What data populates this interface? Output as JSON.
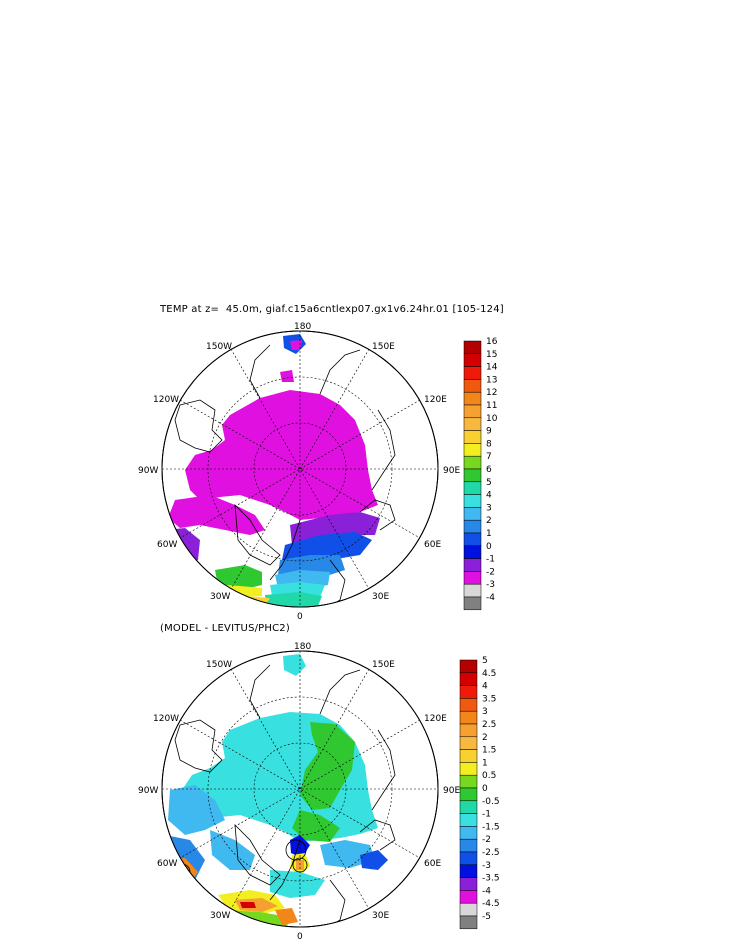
{
  "top_panel": {
    "title": "TEMP at z=  45.0m, giaf.c15a6cntlexp07.gx1v6.24hr.01 [105-124]",
    "labels": {
      "n180": "180",
      "w150": "150W",
      "e150": "150E",
      "w120": "120W",
      "e120": "120E",
      "w90": "90W",
      "e90": "90E",
      "w60": "60W",
      "e60": "60E",
      "w30": "30W",
      "e30": "30E",
      "s0": "0"
    },
    "colorbar": {
      "levels": [
        "16",
        "15",
        "14",
        "13",
        "12",
        "11",
        "10",
        "9",
        "8",
        "7",
        "6",
        "5",
        "4",
        "3",
        "2",
        "1",
        "0",
        "-1",
        "-2",
        "-3",
        "-4"
      ],
      "colors": [
        "#b30000",
        "#d40000",
        "#ef1a0a",
        "#f05a10",
        "#f2861a",
        "#f5a030",
        "#f7b840",
        "#f8d030",
        "#f2ee20",
        "#78d820",
        "#30c830",
        "#20d8a8",
        "#38e0e0",
        "#40b8f0",
        "#2888e8",
        "#1050e8",
        "#0010e0",
        "#8a20d8",
        "#e010e0",
        "#d8d8d8",
        "#808080"
      ]
    }
  },
  "bottom_panel": {
    "title": "(MODEL - LEVITUS/PHC2)",
    "labels": {
      "n180": "180",
      "w150": "150W",
      "e150": "150E",
      "w120": "120W",
      "e120": "120E",
      "w90": "90W",
      "e90": "90E",
      "w60": "60W",
      "e60": "60E",
      "w30": "30W",
      "e30": "30E",
      "s0": "0"
    },
    "colorbar": {
      "levels": [
        "5",
        "4.5",
        "4",
        "3.5",
        "3",
        "2.5",
        "2",
        "1.5",
        "1",
        "0.5",
        "0",
        "-0.5",
        "-1",
        "-1.5",
        "-2",
        "-2.5",
        "-3",
        "-3.5",
        "-4",
        "-4.5",
        "-5"
      ],
      "colors": [
        "#b30000",
        "#d40000",
        "#ef1a0a",
        "#f05a10",
        "#f2861a",
        "#f5a030",
        "#f7b840",
        "#f8d030",
        "#f2ee20",
        "#78d820",
        "#30c830",
        "#20d8a8",
        "#38e0e0",
        "#40b8f0",
        "#2888e8",
        "#1050e8",
        "#0010e0",
        "#8a20d8",
        "#e010e0",
        "#d8d8d8",
        "#808080"
      ]
    }
  }
}
